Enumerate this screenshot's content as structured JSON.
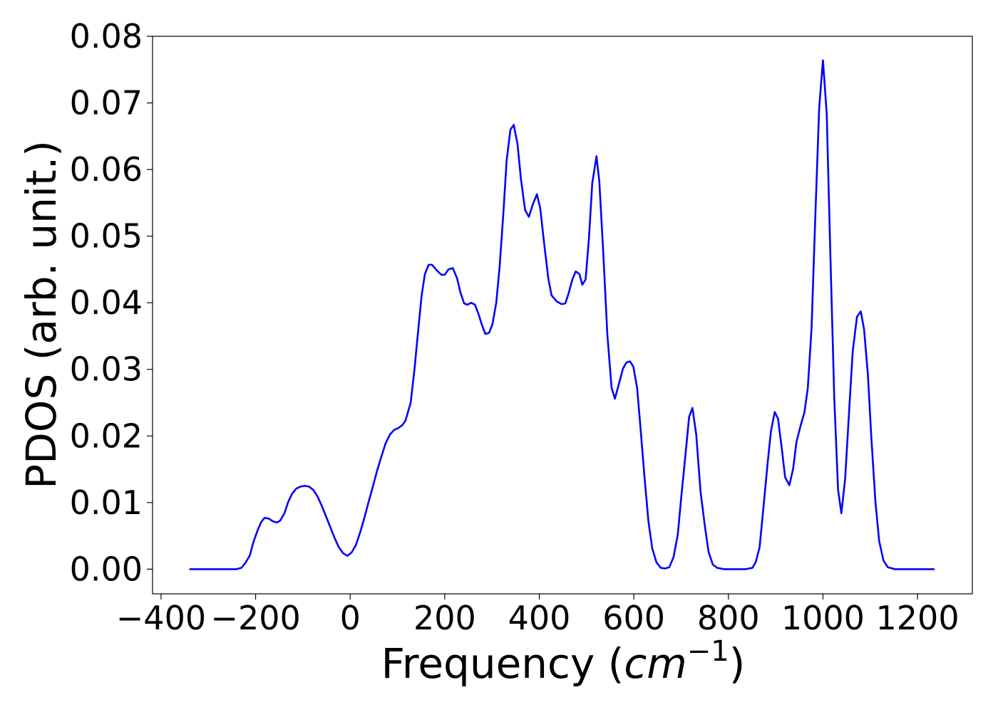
{
  "chart_data": {
    "type": "line",
    "xlabel": [
      "Frequency (",
      "cm",
      "−1",
      ")"
    ],
    "ylabel": "PDOS (arb. unit.)",
    "xlim": [
      -418,
      1316
    ],
    "ylim": [
      -0.0037,
      0.08
    ],
    "xticks": [
      {
        "value": -400,
        "label": "−400"
      },
      {
        "value": -200,
        "label": "−200"
      },
      0,
      200,
      400,
      600,
      800,
      1000,
      1200
    ],
    "yticks": [
      {
        "value": 0,
        "label": "0.00"
      },
      {
        "value": 0.01,
        "label": "0.01"
      },
      {
        "value": 0.02,
        "label": "0.02"
      },
      {
        "value": 0.03,
        "label": "0.03"
      },
      {
        "value": 0.04,
        "label": "0.04"
      },
      {
        "value": 0.05,
        "label": "0.05"
      },
      {
        "value": 0.06,
        "label": "0.06"
      },
      {
        "value": 0.07,
        "label": "0.07"
      },
      {
        "value": 0.08,
        "label": "0.08"
      }
    ],
    "grid": false,
    "series": [
      {
        "color": "#0000ff",
        "x": [
          -340,
          -241,
          -230,
          -221,
          -212,
          -205,
          -196,
          -188,
          -181,
          -172,
          -164,
          -155,
          -148,
          -139,
          -131,
          -123,
          -114,
          -105,
          -96,
          -87,
          -78,
          -69,
          -60,
          -51,
          -42,
          -33,
          -24,
          -15,
          -6,
          3,
          12,
          21,
          30,
          39,
          48,
          57,
          66,
          75,
          84,
          93,
          102,
          110,
          117,
          128,
          136,
          143,
          151,
          158,
          166,
          173,
          184,
          193,
          200,
          208,
          217,
          226,
          233,
          241,
          248,
          256,
          264,
          271,
          279,
          286,
          294,
          301,
          309,
          316,
          324,
          331,
          339,
          346,
          354,
          361,
          370,
          378,
          386,
          395,
          402,
          410,
          419,
          426,
          437,
          447,
          455,
          462,
          470,
          477,
          485,
          491,
          498,
          505,
          512,
          521,
          527,
          535,
          544,
          553,
          560,
          568,
          577,
          584,
          592,
          599,
          607,
          614,
          622,
          631,
          639,
          648,
          657,
          666,
          675,
          684,
          693,
          700,
          709,
          717,
          724,
          732,
          741,
          750,
          758,
          767,
          776,
          791,
          836,
          851,
          858,
          866,
          873,
          883,
          890,
          898,
          905,
          913,
          920,
          929,
          937,
          944,
          953,
          961,
          968,
          976,
          983,
          992,
          1000,
          1008,
          1015,
          1024,
          1032,
          1039,
          1047,
          1056,
          1063,
          1072,
          1080,
          1087,
          1095,
          1102,
          1111,
          1119,
          1128,
          1137,
          1152,
          1236
        ],
        "values": [
          0,
          0,
          0.0002,
          0.001,
          0.0021,
          0.004,
          0.0058,
          0.0071,
          0.0077,
          0.0076,
          0.0072,
          0.007,
          0.0073,
          0.0084,
          0.0101,
          0.0113,
          0.0121,
          0.0124,
          0.0125,
          0.0124,
          0.0119,
          0.0109,
          0.0095,
          0.0079,
          0.0063,
          0.0047,
          0.0033,
          0.0024,
          0.002,
          0.0025,
          0.0036,
          0.0055,
          0.0077,
          0.0101,
          0.0124,
          0.0148,
          0.0169,
          0.0189,
          0.0202,
          0.0209,
          0.0212,
          0.0216,
          0.0223,
          0.025,
          0.03,
          0.0352,
          0.041,
          0.0443,
          0.0457,
          0.0457,
          0.0448,
          0.0442,
          0.0442,
          0.045,
          0.0452,
          0.0437,
          0.0416,
          0.0399,
          0.0397,
          0.04,
          0.0397,
          0.0384,
          0.0366,
          0.0353,
          0.0355,
          0.0368,
          0.04,
          0.0453,
          0.0534,
          0.0614,
          0.066,
          0.0667,
          0.0638,
          0.0587,
          0.0539,
          0.0529,
          0.0547,
          0.0563,
          0.0542,
          0.0491,
          0.0437,
          0.0411,
          0.0402,
          0.0398,
          0.0399,
          0.0414,
          0.0435,
          0.0447,
          0.0443,
          0.0427,
          0.0435,
          0.0496,
          0.0579,
          0.062,
          0.0582,
          0.048,
          0.0352,
          0.0272,
          0.0256,
          0.0277,
          0.0301,
          0.031,
          0.0312,
          0.0304,
          0.0272,
          0.0213,
          0.0143,
          0.0071,
          0.0031,
          0.001,
          0.0002,
          0.0001,
          0.0003,
          0.0018,
          0.0052,
          0.0106,
          0.017,
          0.0229,
          0.0242,
          0.0202,
          0.0117,
          0.0066,
          0.0026,
          0.0007,
          0.0002,
          0,
          0,
          0.0002,
          0.0011,
          0.0033,
          0.0084,
          0.0159,
          0.0207,
          0.0236,
          0.0226,
          0.0181,
          0.0138,
          0.0126,
          0.0151,
          0.0191,
          0.0216,
          0.0236,
          0.0272,
          0.0363,
          0.0512,
          0.0692,
          0.0764,
          0.0684,
          0.0491,
          0.0256,
          0.0119,
          0.0084,
          0.0136,
          0.0245,
          0.0327,
          0.0379,
          0.0387,
          0.036,
          0.0293,
          0.0202,
          0.0101,
          0.0042,
          0.0013,
          0.0003,
          0,
          0
        ]
      }
    ]
  }
}
